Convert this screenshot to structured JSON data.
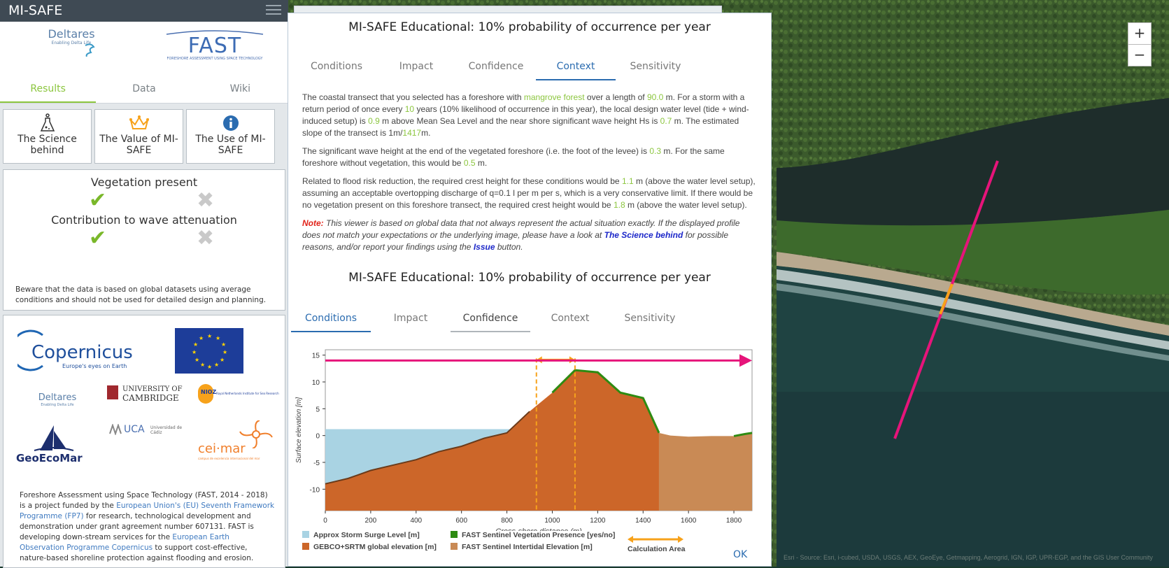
{
  "app": {
    "title": "MI-SAFE"
  },
  "sidebar": {
    "tabs": [
      {
        "label": "Results"
      },
      {
        "label": "Data"
      },
      {
        "label": "Wiki"
      }
    ],
    "buttons": [
      {
        "label": "The Science behind",
        "icon": "flask-icon"
      },
      {
        "label": "The Value of MI-SAFE",
        "icon": "crown-icon"
      },
      {
        "label": "The Use of MI-SAFE",
        "icon": "info-icon"
      }
    ],
    "vegetation": {
      "present_label": "Vegetation present",
      "contribution_label": "Contribution to wave attenuation",
      "note": "Beware that the data is based on global datasets using average conditions and should not be used for detailed design and planning."
    },
    "logos": {
      "deltares": "Deltares",
      "deltares_tag": "Enabling Delta Life",
      "fast": "FAST",
      "fast_tag": "FORESHORE ASSESSMENT USING SPACE TECHNOLOGY",
      "copernicus": "Copernicus",
      "copernicus_tag": "Europe's eyes on Earth",
      "cambridge_1": "UNIVERSITY OF",
      "cambridge_2": "CAMBRIDGE",
      "nioz": "NIOZ",
      "nioz_tag": "Royal Netherlands Institute for Sea Research",
      "uca": "UCA",
      "uca_tag": "Universidad de Cádiz",
      "geoecomar": "GeoEcoMar",
      "ceimar": "cei·mar",
      "ceimar_tag": "campus de excelencia internacional del mar"
    },
    "fast_text": {
      "t1": "Foreshore Assessment using Space Technology (FAST, 2014 - 2018) is a project funded by the ",
      "link1": "European Union's (EU) Seventh Framework Programme (FP7)",
      "t2": " for research, technological development and demonstration under grant agreement number 607131. FAST is developing down-stream services for the ",
      "link2": "European Earth Observation Programme Copernicus",
      "t3": " to support cost-effective, nature-based shoreline protection against flooding and erosion."
    }
  },
  "modal": {
    "title": "MI-SAFE Educational: 10% probability of occurrence per year",
    "tabs": [
      {
        "label": "Conditions"
      },
      {
        "label": "Impact"
      },
      {
        "label": "Confidence"
      },
      {
        "label": "Context"
      },
      {
        "label": "Sensitivity"
      }
    ],
    "context": {
      "p1": {
        "a": "The coastal transect that you selected has a foreshore with ",
        "veg": "mangrove forest",
        "b": " over a length of ",
        "length": "90.0",
        "c": " m. For a storm with a return period of once every ",
        "period": "10",
        "d": " years (10% likelihood of occurrence in this year), the local design water level (tide + wind-induced setup) is ",
        "wl": "0.9",
        "e": " m above Mean Sea Level and the near shore significant wave height Hs is ",
        "hs": "0.7",
        "f": " m. The estimated slope of the transect is 1m/",
        "slope": "1417",
        "g": "m."
      },
      "p2": {
        "a": "The significant wave height at the end of the vegetated foreshore (i.e. the foot of the levee) is ",
        "h1": "0.3",
        "b": " m. For the same foreshore without vegetation, this would be ",
        "h2": "0.5",
        "c": " m."
      },
      "p3": {
        "a": "Related to flood risk reduction, the required crest height for these conditions would be ",
        "c1": "1.1",
        "b": " m (above the water level setup), assuming an acceptable overtopping discharge of q=0.1 l per m per s, which is a very conservative limit. If there would be no vegetation present on this foreshore transect, the required crest height would be ",
        "c2": "1.8",
        "c": " m (above the water level setup)."
      },
      "note": {
        "label": "Note:",
        "a": " This viewer is based on global data that not always represent the actual situation exactly. If the displayed profile does not match your expectations or the underlying image, please have a look at ",
        "link": "The Science behind",
        "b": " for possible reasons, and/or report your findings using the ",
        "issue": "Issue",
        "c": " button."
      }
    },
    "second_title": "MI-SAFE Educational: 10% probability of occurrence per year",
    "ok_label": "OK"
  },
  "map": {
    "zoom_in": "+",
    "zoom_out": "−",
    "attribution": "Esri - Source: Esri, i-cubed, USDA, USGS, AEX, GeoEye, Getmapping, Aerogrid, IGN, IGP, UPR-EGP, and the GIS User Community"
  },
  "chart_data": {
    "type": "area",
    "xlabel": "Cross-shore distance (m)",
    "ylabel": "Surface elevation [m]",
    "xlim": [
      0,
      1880
    ],
    "ylim": [
      -14,
      16
    ],
    "xticks": [
      0,
      200,
      400,
      600,
      800,
      1000,
      1200,
      1400,
      1600,
      1800
    ],
    "yticks": [
      -10,
      -5,
      0,
      5,
      10,
      15
    ],
    "storm_surge_level": 1.2,
    "series": [
      {
        "name": "Approx Storm Surge Level [m]",
        "color": "#a9d3e3"
      },
      {
        "name": "GEBCO+SRTM global elevation [m]",
        "color": "#cc6629",
        "x": [
          0,
          100,
          200,
          300,
          400,
          500,
          600,
          700,
          800,
          900,
          1000,
          1100,
          1200,
          1300,
          1400,
          1470,
          1520,
          1600,
          1700,
          1800,
          1850,
          1880
        ],
        "y": [
          -9,
          -8,
          -6.5,
          -5.5,
          -4.5,
          -3,
          -2,
          -0.5,
          0.5,
          4.5,
          8,
          12.2,
          11.8,
          8,
          7,
          0.5,
          0,
          -0.2,
          -0.1,
          -0.1,
          0.3,
          0.5
        ]
      },
      {
        "name": "FAST Sentinel Vegetation Presence [yes/no]",
        "color": "#2e8b12",
        "x_ranges": [
          [
            1000,
            1470
          ],
          [
            1800,
            1880
          ]
        ]
      },
      {
        "name": "FAST Sentinel Intertidal Elevation [m]",
        "color": "#c98a55",
        "x_range": [
          1470,
          1880
        ]
      },
      {
        "name": "Calculation Area",
        "color": "#f7a21b",
        "x_range": [
          930,
          1100
        ]
      }
    ],
    "water_level_arrow_y": 14
  }
}
